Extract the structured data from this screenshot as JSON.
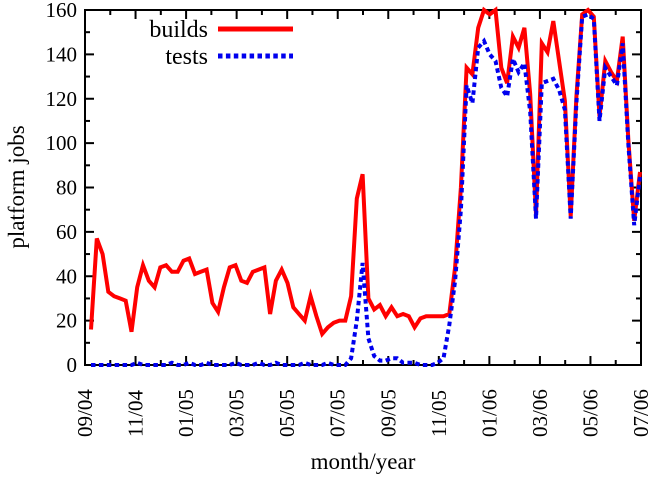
{
  "background_color": "#ffffff",
  "axis_color": "#000000",
  "chart_data": {
    "type": "line",
    "title": "",
    "xlabel": "month/year",
    "ylabel": "platform jobs",
    "ylim": [
      0,
      160
    ],
    "y_major_tick_labels": [
      "0",
      "20",
      "40",
      "60",
      "80",
      "100",
      "120",
      "140",
      "160"
    ],
    "y_major_step": 20,
    "y_minor_step": 10,
    "x_tick_labels": [
      "09/04",
      "11/04",
      "01/05",
      "03/05",
      "05/05",
      "07/05",
      "09/05",
      "11/05",
      "01/06",
      "03/06",
      "05/06",
      "07/06"
    ],
    "x_months_span": 22,
    "x_minor_tick_every_months": 1,
    "x_major_tick_every_months": 2,
    "sampling": "weekly points from 09/2004 to 07/2006",
    "grid": false,
    "legend_position": "top-left-inside",
    "series": [
      {
        "name": "builds",
        "color": "#ff0000",
        "style": "solid",
        "values": [
          16,
          57,
          50,
          33,
          31,
          30,
          29,
          15,
          35,
          45,
          38,
          35,
          44,
          45,
          42,
          42,
          47,
          48,
          41,
          42,
          43,
          28,
          24,
          35,
          44,
          45,
          38,
          37,
          42,
          43,
          44,
          23,
          38,
          43,
          37,
          26,
          23,
          20,
          31,
          22,
          14,
          17,
          19,
          20,
          20,
          31,
          75,
          86,
          30,
          25,
          27,
          22,
          26,
          22,
          23,
          22,
          17,
          21,
          22,
          22,
          22,
          22,
          23,
          44,
          80,
          134,
          131,
          152,
          160,
          158,
          160,
          134,
          127,
          148,
          143,
          152,
          122,
          68,
          145,
          141,
          155,
          137,
          119,
          67,
          121,
          158,
          160,
          157,
          112,
          137,
          132,
          128,
          148,
          101,
          65,
          87
        ]
      },
      {
        "name": "tests",
        "color": "#0000ee",
        "style": "dashed",
        "values": [
          0,
          0,
          0,
          0,
          0,
          0,
          0,
          0,
          1,
          0,
          0,
          0,
          0,
          0,
          1,
          0,
          0,
          1,
          0,
          0,
          1,
          0,
          0,
          0,
          0,
          1,
          0,
          0,
          0,
          1,
          0,
          0,
          1,
          0,
          0,
          0,
          0,
          1,
          0,
          0,
          0,
          1,
          0,
          0,
          0,
          3,
          20,
          46,
          12,
          4,
          2,
          2,
          3,
          3,
          1,
          1,
          1,
          0,
          0,
          0,
          1,
          3,
          18,
          38,
          70,
          126,
          118,
          143,
          146,
          140,
          137,
          125,
          121,
          138,
          132,
          136,
          114,
          66,
          127,
          128,
          129,
          124,
          115,
          66,
          118,
          157,
          158,
          156,
          110,
          134,
          130,
          126,
          145,
          99,
          63,
          85
        ]
      }
    ]
  }
}
